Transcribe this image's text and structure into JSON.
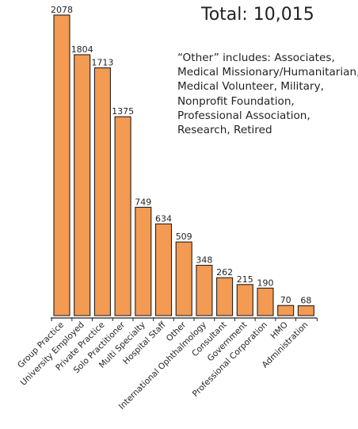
{
  "chart_data": {
    "type": "bar",
    "categories": [
      "Group Practice",
      "University Employed",
      "Private Practice",
      "Solo Practitioner",
      "Multi Specialty",
      "Hospital Staff",
      "Other",
      "International Ophthalmology",
      "Consultant",
      "Government",
      "Professional Corporation",
      "HMO",
      "Administration"
    ],
    "values": [
      2078,
      1804,
      1713,
      1375,
      749,
      634,
      509,
      348,
      262,
      215,
      190,
      70,
      68
    ],
    "data_labels": [
      "2078",
      "1804",
      "1713",
      "1375",
      "749",
      "634",
      "509",
      "348",
      "262",
      "215",
      "190",
      "70",
      "68"
    ],
    "total_label": "Total: 10,015",
    "note_lines": [
      "“Other” includes: Associates,",
      "Medical Missionary/Humanitarian,",
      "Medical Volunteer, Military,",
      "Nonprofit Foundation,",
      "Professional Association,",
      "Research, Retired"
    ],
    "bar_color": "#f39a53",
    "bar_edge_color": "#231f20",
    "ylim": [
      0,
      2078
    ],
    "grid": false
  }
}
